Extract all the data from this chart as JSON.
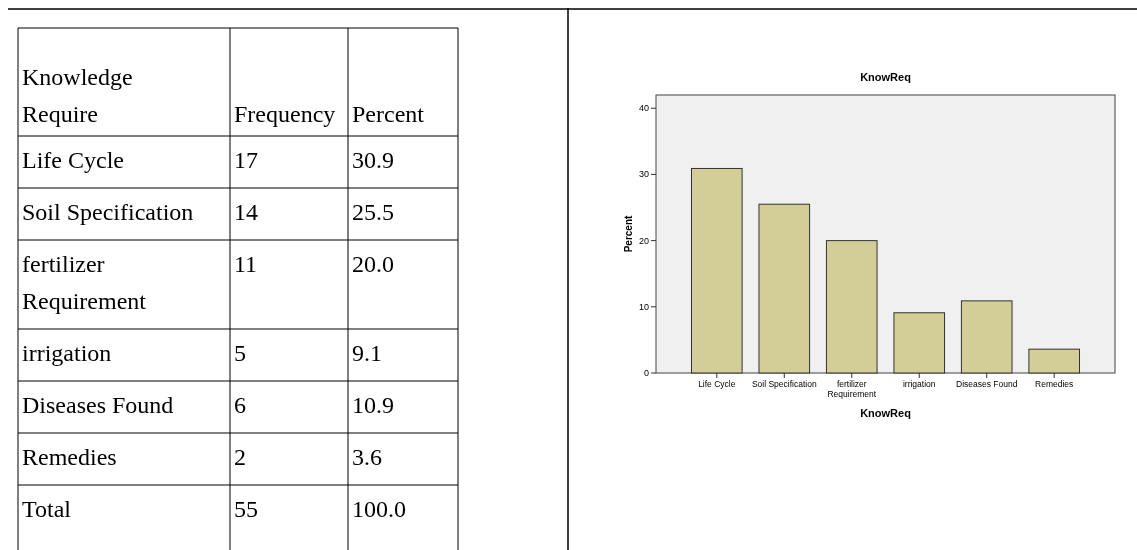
{
  "chart_data": [
    {
      "type": "other",
      "xlabel": "Knowledge Require",
      "categories": [
        "Life Cycle",
        "Soil Specification",
        "fertilizer Requirement",
        "irrigation",
        "Diseases Found",
        "Remedies",
        "Total"
      ],
      "series": [
        {
          "name": "Frequency",
          "values": [
            17,
            14,
            11,
            5,
            6,
            2,
            55
          ],
          "value_labels": [
            "17",
            "14",
            "11",
            "5",
            "6",
            "2",
            "55"
          ]
        },
        {
          "name": "Percent",
          "values": [
            30.9,
            25.5,
            20.0,
            9.1,
            10.9,
            3.6,
            100.0
          ],
          "value_labels": [
            "30.9",
            "25.5",
            "20.0",
            "9.1",
            "10.9",
            "3.6",
            "100.0"
          ]
        }
      ]
    },
    {
      "type": "bar",
      "title": "KnowReq",
      "xlabel": "KnowReq",
      "ylabel": "Percent",
      "categories": [
        "Life Cycle",
        "Soil Specification",
        "fertilizer Requirement",
        "irrigation",
        "Diseases Found",
        "Remedies"
      ],
      "values": [
        30.9,
        25.5,
        20.0,
        9.1,
        10.9,
        3.6
      ],
      "color": "#d3ce97",
      "ylim": [
        0,
        42
      ],
      "yticks": [
        0,
        10,
        20,
        30,
        40
      ],
      "grid": false
    }
  ]
}
